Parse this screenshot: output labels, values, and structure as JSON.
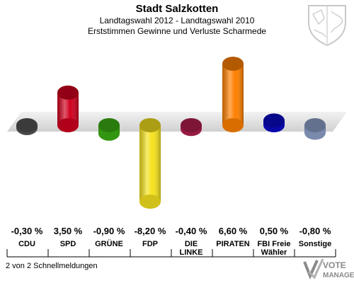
{
  "header": {
    "title": "Stadt Salzkotten",
    "subtitle1": "Landtagswahl 2012 - Landtagswahl 2010",
    "subtitle2": "Erststimmen Gewinne und Verluste Scharmede"
  },
  "footer": {
    "note": "2 von 2 Schnellmeldungen"
  },
  "logo": {
    "line1": "VOTE",
    "line2": "MANAGER"
  },
  "chart_data": {
    "type": "bar",
    "title": "Erststimmen Gewinne und Verluste Scharmede",
    "categories": [
      "CDU",
      "SPD",
      "GRÜNE",
      "FDP",
      "DIE LINKE",
      "PIRATEN",
      "FBI Freie Wähler",
      "Sonstige"
    ],
    "category_lines": [
      [
        "CDU"
      ],
      [
        "SPD"
      ],
      [
        "GRÜNE"
      ],
      [
        "FDP"
      ],
      [
        "DIE",
        "LINKE"
      ],
      [
        "PIRATEN"
      ],
      [
        "FBI Freie",
        "Wähler"
      ],
      [
        "Sonstige"
      ]
    ],
    "values": [
      -0.3,
      3.5,
      -0.9,
      -8.2,
      -0.4,
      6.6,
      0.5,
      -0.8
    ],
    "value_labels": [
      "-0,30 %",
      "3,50 %",
      "-0,90 %",
      "-8,20 %",
      "-0,40 %",
      "6,60 %",
      "0,50 %",
      "-0,80 %"
    ],
    "colors": [
      "#555555",
      "#d0001e",
      "#3cb014",
      "#f5e21d",
      "#b3204d",
      "#ff8000",
      "#0a0ac8",
      "#8ea2cc"
    ],
    "unit": "%",
    "grid": false,
    "legend": "none"
  }
}
